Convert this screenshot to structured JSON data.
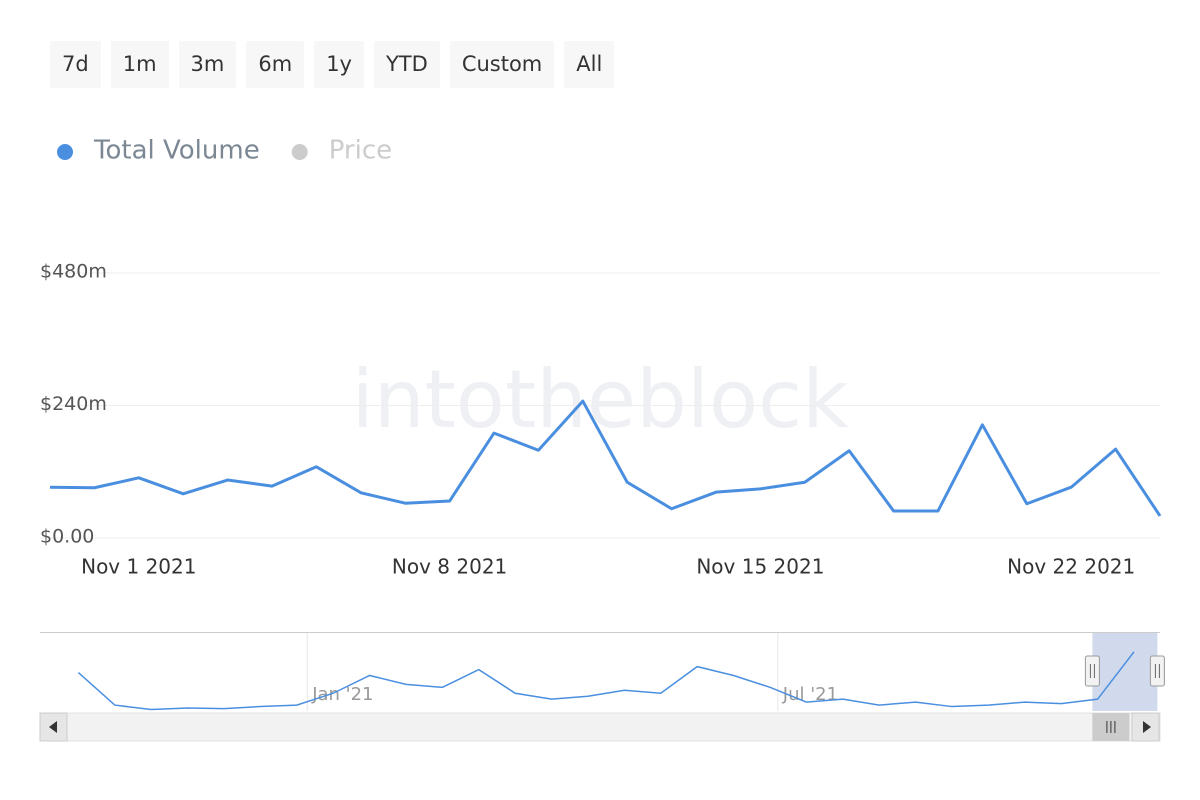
{
  "range_buttons": [
    "7d",
    "1m",
    "3m",
    "6m",
    "1y",
    "YTD",
    "Custom",
    "All"
  ],
  "watermark": "intotheblock",
  "chart_data": {
    "type": "line",
    "x": [
      "2021-10-30",
      "2021-10-31",
      "2021-11-01",
      "2021-11-02",
      "2021-11-03",
      "2021-11-04",
      "2021-11-05",
      "2021-11-06",
      "2021-11-07",
      "2021-11-08",
      "2021-11-09",
      "2021-11-10",
      "2021-11-11",
      "2021-11-12",
      "2021-11-13",
      "2021-11-14",
      "2021-11-15",
      "2021-11-16",
      "2021-11-17",
      "2021-11-18",
      "2021-11-19",
      "2021-11-20",
      "2021-11-21",
      "2021-11-22",
      "2021-11-23",
      "2021-11-24"
    ],
    "series": [
      {
        "name": "Total Volume",
        "color": "#4a8fdf",
        "values": [
          92,
          91,
          109,
          80,
          105,
          94,
          129,
          82,
          63,
          67,
          190,
          159,
          248,
          101,
          53,
          83,
          89,
          101,
          158,
          49,
          49,
          205,
          62,
          92,
          161,
          40
        ]
      }
    ],
    "hidden_series": [
      {
        "name": "Price",
        "color": "#cccccc"
      }
    ],
    "xlim": [
      "2021-10-30",
      "2021-11-24"
    ],
    "xticks": [
      {
        "value": "2021-11-01",
        "label": "Nov 1 2021"
      },
      {
        "value": "2021-11-08",
        "label": "Nov 8 2021"
      },
      {
        "value": "2021-11-15",
        "label": "Nov 15 2021"
      },
      {
        "value": "2021-11-22",
        "label": "Nov 22 2021"
      }
    ],
    "ylim": [
      0,
      480
    ],
    "yticks": [
      {
        "value": 0,
        "label": "$0.00"
      },
      {
        "value": 240,
        "label": "$240m"
      },
      {
        "value": 480,
        "label": "$480m"
      }
    ],
    "grid": true,
    "navigator": {
      "x": [
        "2020-10-05",
        "2020-10-19",
        "2020-11-02",
        "2020-11-16",
        "2020-11-30",
        "2020-12-14",
        "2020-12-28",
        "2021-01-11",
        "2021-01-25",
        "2021-02-08",
        "2021-02-22",
        "2021-03-08",
        "2021-03-22",
        "2021-04-05",
        "2021-04-19",
        "2021-05-03",
        "2021-05-17",
        "2021-05-31",
        "2021-06-14",
        "2021-06-28",
        "2021-07-12",
        "2021-07-26",
        "2021-08-09",
        "2021-08-23",
        "2021-09-06",
        "2021-09-20",
        "2021-10-04",
        "2021-10-18",
        "2021-11-01",
        "2021-11-15"
      ],
      "values": [
        130,
        20,
        5,
        10,
        8,
        15,
        20,
        60,
        120,
        90,
        80,
        140,
        60,
        40,
        50,
        70,
        60,
        150,
        120,
        80,
        30,
        40,
        20,
        30,
        15,
        20,
        30,
        25,
        40,
        200
      ],
      "xlim": [
        "2020-10-01",
        "2021-11-25"
      ],
      "ylim": [
        0,
        250
      ],
      "xticks": [
        {
          "value": "2021-01-01",
          "label": "Jan '21"
        },
        {
          "value": "2021-07-01",
          "label": "Jul '21"
        }
      ],
      "selection": [
        "2021-10-30",
        "2021-11-24"
      ]
    }
  }
}
